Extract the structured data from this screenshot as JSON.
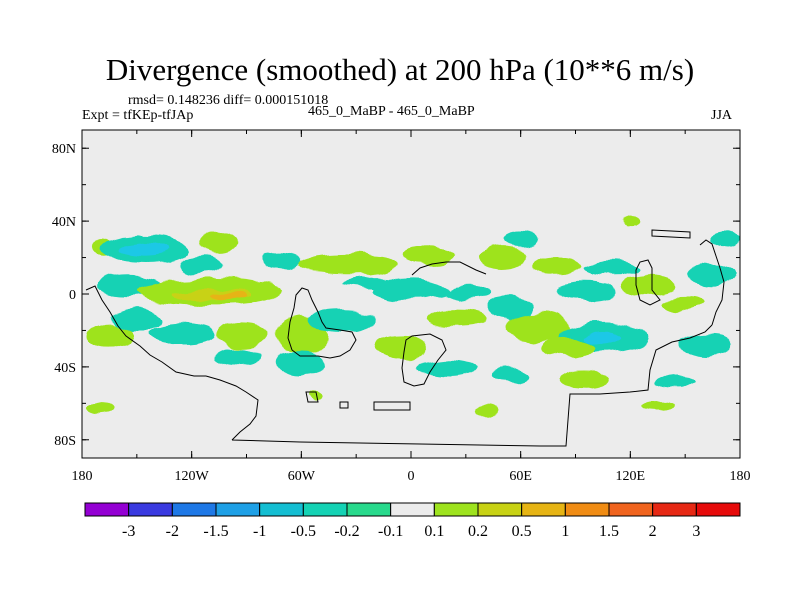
{
  "header": {
    "title": "Divergence (smoothed) at 200 hPa (10**6 m/s)",
    "stats": "rmsd= 0.148236 diff= 0.000151018",
    "left_label": "Expt = tfKEp-tfJAp",
    "center_label": "465_0_MaBP - 465_0_MaBP",
    "right_label": "JJA"
  },
  "chart_data": {
    "type": "heatmap",
    "title": "Divergence (smoothed) at 200 hPa (10**6 m/s)",
    "xlim": [
      -180,
      180
    ],
    "ylim": [
      -90,
      90
    ],
    "x_ticks": [
      {
        "value": -180,
        "label": "180"
      },
      {
        "value": -120,
        "label": "120W"
      },
      {
        "value": -60,
        "label": "60W"
      },
      {
        "value": 0,
        "label": "0"
      },
      {
        "value": 60,
        "label": "60E"
      },
      {
        "value": 120,
        "label": "120E"
      },
      {
        "value": 180,
        "label": "180"
      }
    ],
    "y_ticks": [
      {
        "value": 80,
        "label": "80N"
      },
      {
        "value": 40,
        "label": "40N"
      },
      {
        "value": 0,
        "label": "0"
      },
      {
        "value": -40,
        "label": "40S"
      },
      {
        "value": -80,
        "label": "80S"
      }
    ],
    "colorbar": {
      "labels": [
        "-3",
        "-2",
        "-1.5",
        "-1",
        "-0.5",
        "-0.2",
        "-0.1",
        "0.1",
        "0.2",
        "0.5",
        "1",
        "1.5",
        "2",
        "3"
      ],
      "colors": [
        "#9400d3",
        "#3a3ae0",
        "#1e78e6",
        "#1ea0e6",
        "#14bed2",
        "#14d2b4",
        "#28d98c",
        "#ececec",
        "#9ee31e",
        "#c8d214",
        "#e6b414",
        "#f08c14",
        "#f0641e",
        "#e62814",
        "#e60a0a"
      ]
    },
    "regions": [
      {
        "lon": -168,
        "lat": 26,
        "rx": 6,
        "ry": 5,
        "level": "pos_low"
      },
      {
        "lon": -145,
        "lat": 25,
        "rx": 24,
        "ry": 8,
        "level": "neg_low"
      },
      {
        "lon": -145,
        "lat": 25,
        "rx": 14,
        "ry": 4,
        "level": "neg_mid"
      },
      {
        "lon": -105,
        "lat": 28,
        "rx": 10,
        "ry": 6,
        "level": "pos_low"
      },
      {
        "lon": -115,
        "lat": 16,
        "rx": 12,
        "ry": 5,
        "level": "neg_low"
      },
      {
        "lon": -72,
        "lat": 18,
        "rx": 10,
        "ry": 5,
        "level": "neg_low"
      },
      {
        "lon": -155,
        "lat": 4,
        "rx": 18,
        "ry": 6,
        "level": "neg_low"
      },
      {
        "lon": -110,
        "lat": 1,
        "rx": 40,
        "ry": 7,
        "level": "pos_low"
      },
      {
        "lon": -110,
        "lat": 0,
        "rx": 22,
        "ry": 3,
        "level": "pos_mid"
      },
      {
        "lon": -100,
        "lat": -1,
        "rx": 9,
        "ry": 2,
        "level": "pos_high"
      },
      {
        "lon": -150,
        "lat": -14,
        "rx": 14,
        "ry": 6,
        "level": "neg_low"
      },
      {
        "lon": -165,
        "lat": -23,
        "rx": 12,
        "ry": 7,
        "level": "pos_low"
      },
      {
        "lon": -125,
        "lat": -22,
        "rx": 18,
        "ry": 6,
        "level": "neg_low"
      },
      {
        "lon": -92,
        "lat": -22,
        "rx": 14,
        "ry": 7,
        "level": "pos_low"
      },
      {
        "lon": -95,
        "lat": -34,
        "rx": 12,
        "ry": 5,
        "level": "neg_low"
      },
      {
        "lon": -60,
        "lat": -22,
        "rx": 14,
        "ry": 10,
        "level": "pos_low"
      },
      {
        "lon": -60,
        "lat": -38,
        "rx": 14,
        "ry": 7,
        "level": "neg_low"
      },
      {
        "lon": -38,
        "lat": -14,
        "rx": 18,
        "ry": 6,
        "level": "neg_low"
      },
      {
        "lon": -35,
        "lat": 16,
        "rx": 28,
        "ry": 6,
        "level": "pos_low"
      },
      {
        "lon": -20,
        "lat": 6,
        "rx": 18,
        "ry": 3,
        "level": "neg_low"
      },
      {
        "lon": 10,
        "lat": 22,
        "rx": 14,
        "ry": 5,
        "level": "pos_low"
      },
      {
        "lon": 0,
        "lat": 2,
        "rx": 20,
        "ry": 6,
        "level": "neg_low"
      },
      {
        "lon": -5,
        "lat": -30,
        "rx": 14,
        "ry": 7,
        "level": "pos_low"
      },
      {
        "lon": 20,
        "lat": -40,
        "rx": 16,
        "ry": 5,
        "level": "neg_low"
      },
      {
        "lon": 25,
        "lat": -13,
        "rx": 16,
        "ry": 5,
        "level": "pos_low"
      },
      {
        "lon": 32,
        "lat": 0,
        "rx": 14,
        "ry": 4,
        "level": "neg_low"
      },
      {
        "lon": 50,
        "lat": 20,
        "rx": 12,
        "ry": 6,
        "level": "pos_low"
      },
      {
        "lon": 60,
        "lat": 30,
        "rx": 10,
        "ry": 4,
        "level": "neg_low"
      },
      {
        "lon": 55,
        "lat": -8,
        "rx": 12,
        "ry": 6,
        "level": "neg_low"
      },
      {
        "lon": 70,
        "lat": -18,
        "rx": 18,
        "ry": 8,
        "level": "pos_low"
      },
      {
        "lon": 55,
        "lat": -45,
        "rx": 10,
        "ry": 4,
        "level": "neg_low"
      },
      {
        "lon": 80,
        "lat": 15,
        "rx": 14,
        "ry": 5,
        "level": "pos_low"
      },
      {
        "lon": 110,
        "lat": 14,
        "rx": 15,
        "ry": 4,
        "level": "neg_low"
      },
      {
        "lon": 95,
        "lat": 2,
        "rx": 16,
        "ry": 5,
        "level": "neg_low"
      },
      {
        "lon": 105,
        "lat": -24,
        "rx": 24,
        "ry": 9,
        "level": "neg_low"
      },
      {
        "lon": 105,
        "lat": -24,
        "rx": 10,
        "ry": 4,
        "level": "neg_mid"
      },
      {
        "lon": 85,
        "lat": -30,
        "rx": 14,
        "ry": 6,
        "level": "pos_low"
      },
      {
        "lon": 95,
        "lat": -47,
        "rx": 14,
        "ry": 5,
        "level": "pos_low"
      },
      {
        "lon": 130,
        "lat": 5,
        "rx": 16,
        "ry": 5,
        "level": "pos_low"
      },
      {
        "lon": 165,
        "lat": 10,
        "rx": 14,
        "ry": 6,
        "level": "neg_low"
      },
      {
        "lon": 150,
        "lat": -5,
        "rx": 12,
        "ry": 4,
        "level": "pos_low"
      },
      {
        "lon": 162,
        "lat": -28,
        "rx": 14,
        "ry": 6,
        "level": "neg_low"
      },
      {
        "lon": 145,
        "lat": -48,
        "rx": 10,
        "ry": 3,
        "level": "neg_low"
      },
      {
        "lon": 135,
        "lat": -62,
        "rx": 8,
        "ry": 3,
        "level": "pos_low"
      },
      {
        "lon": 172,
        "lat": 30,
        "rx": 8,
        "ry": 4,
        "level": "neg_low"
      },
      {
        "lon": 120,
        "lat": 40,
        "rx": 5,
        "ry": 3,
        "level": "pos_low"
      },
      {
        "lon": -52,
        "lat": -56,
        "rx": 4,
        "ry": 2,
        "level": "pos_low"
      },
      {
        "lon": -170,
        "lat": -63,
        "rx": 7,
        "ry": 3,
        "level": "pos_low"
      },
      {
        "lon": 42,
        "lat": -64,
        "rx": 6,
        "ry": 3,
        "level": "pos_low"
      }
    ],
    "levels": {
      "pos_low": "#9ee31e",
      "pos_mid": "#c8d214",
      "pos_high": "#e6b414",
      "neg_low": "#14d2b4",
      "neg_mid": "#1ec8e6"
    }
  }
}
